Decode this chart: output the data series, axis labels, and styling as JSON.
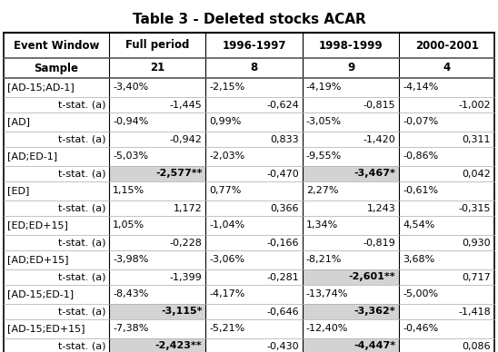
{
  "title": "Table 3 - Deleted stocks ACAR",
  "columns": [
    "Event Window",
    "Full period",
    "1996-1997",
    "1998-1999",
    "2000-2001"
  ],
  "sample_row": [
    "Sample",
    "21",
    "8",
    "9",
    "4"
  ],
  "rows": [
    [
      "[AD-15;AD-1]",
      "-3,40%",
      "-2,15%",
      "-4,19%",
      "-4,14%"
    ],
    [
      "t-stat. (a)",
      "-1,445",
      "-0,624",
      "-0,815",
      "-1,002"
    ],
    [
      "[AD]",
      "-0,94%",
      "0,99%",
      "-3,05%",
      "-0,07%"
    ],
    [
      "t-stat. (a)",
      "-0,942",
      "0,833",
      "-1,420",
      "0,311"
    ],
    [
      "[AD;ED-1]",
      "-5,03%",
      "-2,03%",
      "-9,55%",
      "-0,86%"
    ],
    [
      "t-stat. (a)",
      "-2,577**",
      "-0,470",
      "-3,467*",
      "0,042"
    ],
    [
      "[ED]",
      "1,15%",
      "0,77%",
      "2,27%",
      "-0,61%"
    ],
    [
      "t-stat. (a)",
      "1,172",
      "0,366",
      "1,243",
      "-0,315"
    ],
    [
      "[ED;ED+15]",
      "1,05%",
      "-1,04%",
      "1,34%",
      "4,54%"
    ],
    [
      "t-stat. (a)",
      "-0,228",
      "-0,166",
      "-0,819",
      "0,930"
    ],
    [
      "[AD;ED+15]",
      "-3,98%",
      "-3,06%",
      "-8,21%",
      "3,68%"
    ],
    [
      "t-stat. (a)",
      "-1,399",
      "-0,281",
      "-2,601**",
      "0,717"
    ],
    [
      "[AD-15;ED-1]",
      "-8,43%",
      "-4,17%",
      "-13,74%",
      "-5,00%"
    ],
    [
      "t-stat. (a)",
      "-3,115*",
      "-0,646",
      "-3,362*",
      "-1,418"
    ],
    [
      "[AD-15;ED+15]",
      "-7,38%",
      "-5,21%",
      "-12,40%",
      "-0,46%"
    ],
    [
      "t-stat. (a)",
      "-2,423**",
      "-0,430",
      "-4,447*",
      "0,086"
    ]
  ],
  "highlighted_tstat_pairs": [
    2,
    5,
    6,
    7
  ],
  "highlight_cols": {
    "2": [
      1,
      3
    ],
    "5": [
      3
    ],
    "6": [
      1,
      3
    ],
    "7": [
      1,
      3
    ]
  },
  "bold_values": [
    "-2,577**",
    "-3,467*",
    "-2,601**",
    "-3,115*",
    "-3,362*",
    "-2,423**",
    "-4,447*"
  ],
  "bg_color": "#ffffff",
  "highlight_color": "#d3d3d3",
  "title_fontsize": 11,
  "header_fontsize": 8.5,
  "cell_fontsize": 8.0
}
